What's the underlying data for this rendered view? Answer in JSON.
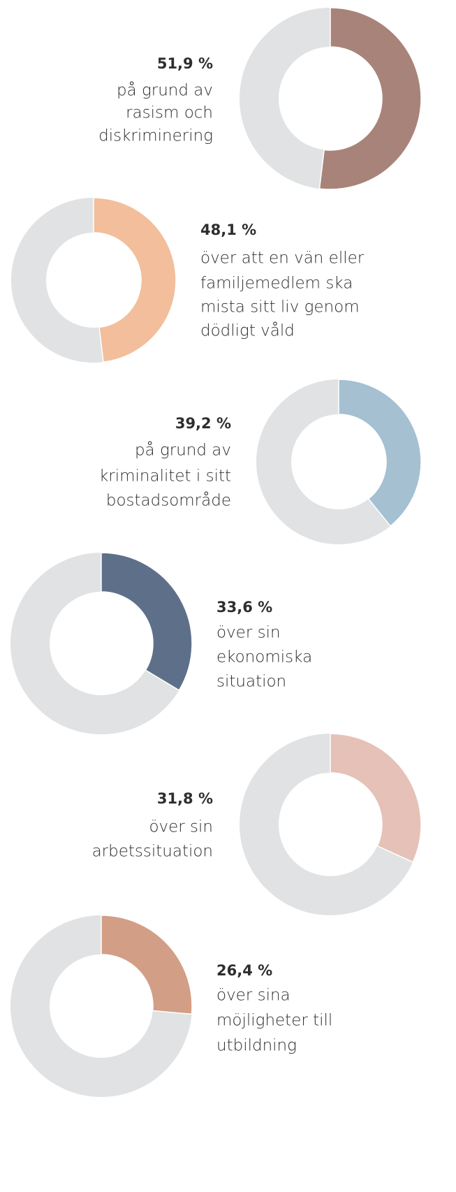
{
  "chart_data": [
    {
      "type": "donut",
      "values": [
        51.9
      ],
      "value_labels": [
        "51,9 %"
      ],
      "color": "#a8837a",
      "annotation_lines": [
        "på grund av",
        "rasism och",
        "diskriminering"
      ]
    },
    {
      "type": "donut",
      "values": [
        48.1
      ],
      "value_labels": [
        "48,1 %"
      ],
      "color": "#f2be9c",
      "annotation_lines": [
        "över att en vän eller",
        "familjemedlem ska",
        "mista sitt liv genom",
        "dödligt våld"
      ]
    },
    {
      "type": "donut",
      "values": [
        39.2
      ],
      "value_labels": [
        "39,2 %"
      ],
      "color": "#a4c0d1",
      "annotation_lines": [
        "på grund av",
        "kriminalitet i sitt",
        "bostadsområde"
      ]
    },
    {
      "type": "donut",
      "values": [
        33.6
      ],
      "value_labels": [
        "33,6 %"
      ],
      "color": "#5e7089",
      "annotation_lines": [
        "över sin",
        "ekonomiska",
        "situation"
      ]
    },
    {
      "type": "donut",
      "values": [
        31.8
      ],
      "value_labels": [
        "31,8 %"
      ],
      "color": "#e5c1b7",
      "annotation_lines": [
        "över sin",
        "arbetssituation"
      ]
    },
    {
      "type": "donut",
      "values": [
        26.4
      ],
      "value_labels": [
        "26,4 %"
      ],
      "color": "#d39e86",
      "annotation_lines": [
        "över sina",
        "möjligheter till",
        "utbildning"
      ]
    }
  ]
}
